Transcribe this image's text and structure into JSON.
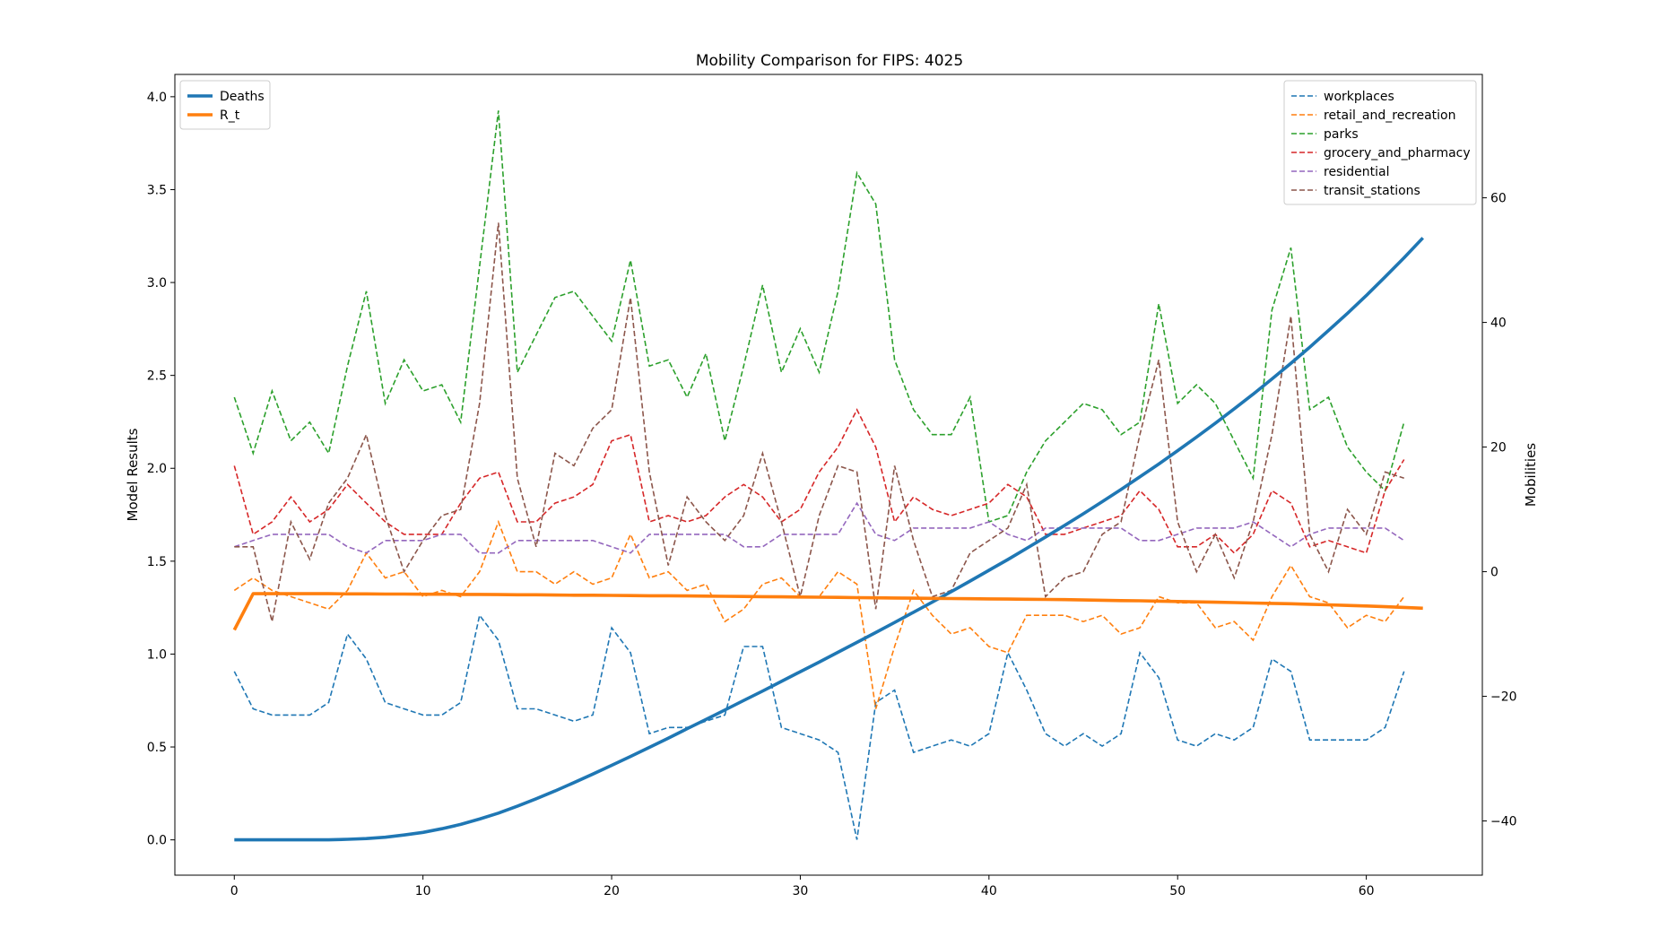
{
  "chart_data": {
    "type": "line",
    "title": "Mobility Comparison for FIPS: 4025",
    "xlabel": "",
    "ylabel_left": "Model Results",
    "ylabel_right": "Mobilities",
    "xlim": [
      -3.15,
      66.15
    ],
    "ylim_left": [
      -0.19,
      4.12
    ],
    "ylim_right": [
      -48.7,
      79.8
    ],
    "x_ticks": [
      0,
      10,
      20,
      30,
      40,
      50,
      60
    ],
    "y_ticks_left": [
      0.0,
      0.5,
      1.0,
      1.5,
      2.0,
      2.5,
      3.0,
      3.5,
      4.0
    ],
    "y_ticks_right": [
      -40,
      -20,
      0,
      20,
      40,
      60
    ],
    "grid": false,
    "legend_left_placement": "upper-left",
    "legend_right_placement": "upper-right",
    "model_series": [
      {
        "name": "Deaths",
        "color": "#1f77b4",
        "axis": "left",
        "style": "solid",
        "values": [
          0.0,
          0.0,
          0.0,
          0.0,
          0.0,
          0.0,
          0.003,
          0.007,
          0.014,
          0.026,
          0.04,
          0.06,
          0.083,
          0.112,
          0.144,
          0.181,
          0.221,
          0.263,
          0.308,
          0.354,
          0.401,
          0.449,
          0.498,
          0.547,
          0.598,
          0.648,
          0.699,
          0.75,
          0.801,
          0.853,
          0.905,
          0.957,
          1.01,
          1.063,
          1.116,
          1.17,
          1.225,
          1.28,
          1.336,
          1.393,
          1.451,
          1.509,
          1.569,
          1.63,
          1.692,
          1.755,
          1.82,
          1.886,
          1.954,
          2.023,
          2.095,
          2.168,
          2.243,
          2.32,
          2.399,
          2.481,
          2.565,
          2.652,
          2.742,
          2.834,
          2.93,
          3.03,
          3.133,
          3.24
        ]
      },
      {
        "name": "R_t",
        "color": "#ff7f0e",
        "axis": "left",
        "style": "solid",
        "values": [
          1.13,
          1.325,
          1.325,
          1.325,
          1.325,
          1.325,
          1.324,
          1.324,
          1.323,
          1.323,
          1.322,
          1.322,
          1.321,
          1.321,
          1.32,
          1.319,
          1.319,
          1.318,
          1.317,
          1.317,
          1.316,
          1.315,
          1.314,
          1.314,
          1.313,
          1.312,
          1.311,
          1.31,
          1.309,
          1.308,
          1.307,
          1.306,
          1.305,
          1.304,
          1.303,
          1.302,
          1.301,
          1.3,
          1.299,
          1.298,
          1.297,
          1.296,
          1.295,
          1.294,
          1.293,
          1.291,
          1.29,
          1.288,
          1.287,
          1.285,
          1.283,
          1.281,
          1.279,
          1.277,
          1.275,
          1.273,
          1.271,
          1.268,
          1.265,
          1.262,
          1.259,
          1.255,
          1.251,
          1.247
        ]
      }
    ],
    "mobility_series": [
      {
        "name": "workplaces",
        "color": "#1f77b4",
        "axis": "right",
        "style": "dashed",
        "values": [
          -16,
          -22,
          -23,
          -23,
          -23,
          -21,
          -10,
          -14,
          -21,
          -22,
          -23,
          -23,
          -21,
          -7,
          -11,
          -22,
          -22,
          -23,
          -24,
          -23,
          -9,
          -13,
          -26,
          -25,
          -25,
          -24,
          -23,
          -12,
          -12,
          -25,
          -26,
          -27,
          -29,
          -43,
          -21,
          -19,
          -29,
          -28,
          -27,
          -28,
          -26,
          -13,
          -19,
          -26,
          -28,
          -26,
          -28,
          -26,
          -13,
          -17,
          -27,
          -28,
          -26,
          -27,
          -25,
          -14,
          -16,
          -27,
          -27,
          -27,
          -27,
          -25,
          -16
        ]
      },
      {
        "name": "retail_and_recreation",
        "color": "#ff7f0e",
        "axis": "right",
        "style": "dashed",
        "values": [
          -3,
          -1,
          -3,
          -4,
          -5,
          -6,
          -3,
          3,
          -1,
          0,
          -4,
          -3,
          -4,
          0,
          8,
          0,
          0,
          -2,
          0,
          -2,
          -1,
          6,
          -1,
          0,
          -3,
          -2,
          -8,
          -6,
          -2,
          -1,
          -4,
          -4,
          0,
          -2,
          -22,
          -12,
          -3,
          -7,
          -10,
          -9,
          -12,
          -13,
          -7,
          -7,
          -7,
          -8,
          -7,
          -10,
          -9,
          -4,
          -5,
          -5,
          -9,
          -8,
          -11,
          -4,
          1,
          -4,
          -5,
          -9,
          -7,
          -8,
          -4
        ]
      },
      {
        "name": "parks",
        "color": "#2ca02c",
        "axis": "right",
        "style": "dashed",
        "values": [
          28,
          19,
          29,
          21,
          24,
          19,
          33,
          45,
          27,
          34,
          29,
          30,
          24,
          49,
          74,
          32,
          38,
          44,
          45,
          41,
          37,
          50,
          33,
          34,
          28,
          35,
          21,
          33,
          46,
          32,
          39,
          32,
          45,
          64,
          59,
          34,
          26,
          22,
          22,
          28,
          8,
          9,
          16,
          21,
          24,
          27,
          26,
          22,
          24,
          43,
          27,
          30,
          27,
          21,
          15,
          42,
          52,
          26,
          28,
          20,
          16,
          13,
          24
        ]
      },
      {
        "name": "grocery_and_pharmacy",
        "color": "#d62728",
        "axis": "right",
        "style": "dashed",
        "values": [
          17,
          6,
          8,
          12,
          8,
          10,
          14,
          11,
          8,
          6,
          6,
          6,
          11,
          15,
          16,
          8,
          8,
          11,
          12,
          14,
          21,
          22,
          8,
          9,
          8,
          9,
          12,
          14,
          12,
          8,
          10,
          16,
          20,
          26,
          20,
          8,
          12,
          10,
          9,
          10,
          11,
          14,
          12,
          6,
          6,
          7,
          8,
          9,
          13,
          10,
          4,
          4,
          6,
          3,
          6,
          13,
          11,
          4,
          5,
          4,
          3,
          13,
          18
        ]
      },
      {
        "name": "residential",
        "color": "#9467bd",
        "axis": "right",
        "style": "dashed",
        "values": [
          4,
          5,
          6,
          6,
          6,
          6,
          4,
          3,
          5,
          5,
          5,
          6,
          6,
          3,
          3,
          5,
          5,
          5,
          5,
          5,
          4,
          3,
          6,
          6,
          6,
          6,
          6,
          4,
          4,
          6,
          6,
          6,
          6,
          11,
          6,
          5,
          7,
          7,
          7,
          7,
          8,
          6,
          5,
          7,
          7,
          7,
          7,
          7,
          5,
          5,
          6,
          7,
          7,
          7,
          8,
          6,
          4,
          6,
          7,
          7,
          7,
          7,
          5
        ]
      },
      {
        "name": "transit_stations",
        "color": "#8c564b",
        "axis": "right",
        "style": "dashed",
        "values": [
          4,
          4,
          -8,
          8,
          2,
          11,
          15,
          22,
          9,
          0,
          5,
          9,
          10,
          27,
          56,
          15,
          4,
          19,
          17,
          23,
          26,
          44,
          16,
          1,
          12,
          8,
          5,
          9,
          19,
          8,
          -4,
          9,
          17,
          16,
          -6,
          17,
          5,
          -4,
          -3,
          3,
          5,
          7,
          14,
          -4,
          -1,
          0,
          6,
          8,
          22,
          34,
          8,
          0,
          6,
          -1,
          8,
          22,
          41,
          6,
          0,
          10,
          6,
          16,
          15
        ]
      }
    ]
  }
}
